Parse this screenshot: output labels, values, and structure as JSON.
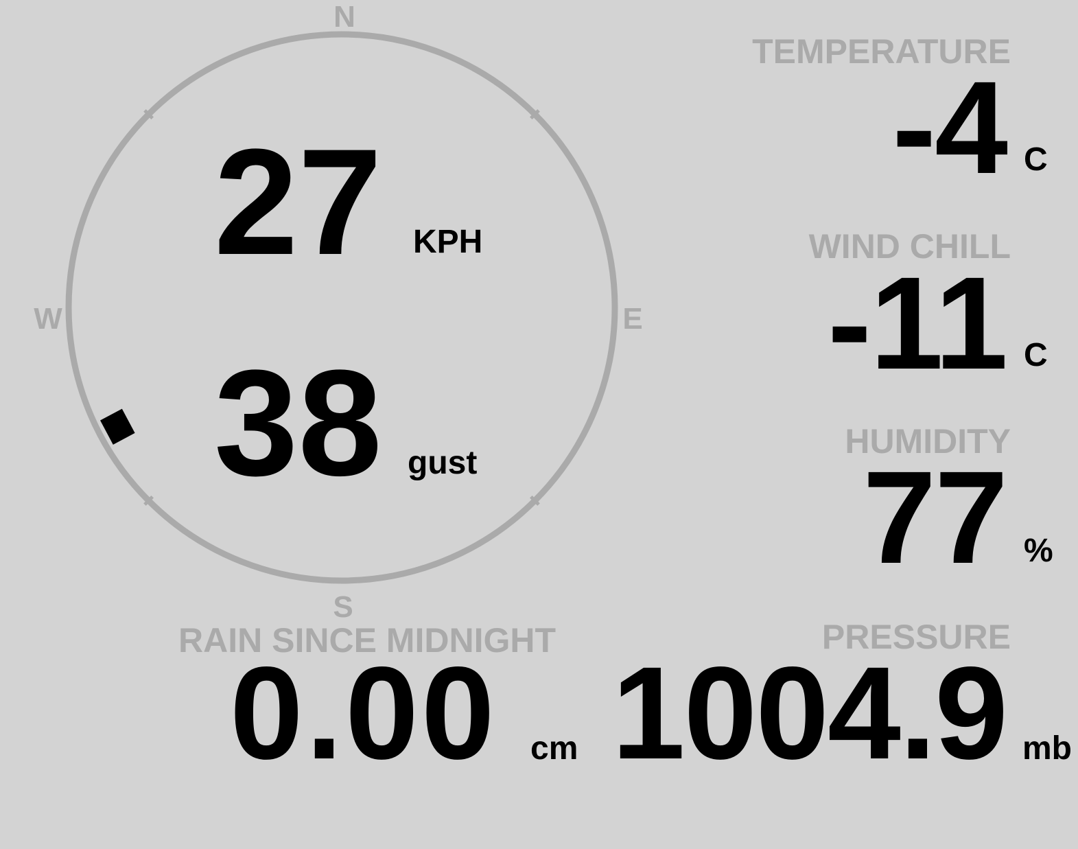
{
  "compass": {
    "north": "N",
    "south": "S",
    "east": "E",
    "west": "W",
    "wind_direction_deg": 242,
    "ring_color": "#aaaaaa",
    "pointer_color": "#000000"
  },
  "wind": {
    "speed": "27",
    "speed_unit": "KPH",
    "gust": "38",
    "gust_unit": "gust"
  },
  "temperature": {
    "label": "TEMPERATURE",
    "value": "-4",
    "unit": "C"
  },
  "wind_chill": {
    "label": "WIND CHILL",
    "value": "-11",
    "unit": "C"
  },
  "humidity": {
    "label": "HUMIDITY",
    "value": "77",
    "unit": "%"
  },
  "pressure": {
    "label": "PRESSURE",
    "value": "1004.9",
    "unit": "mb"
  },
  "rain": {
    "label": "RAIN SINCE MIDNIGHT",
    "value": "0.00",
    "unit": "cm"
  },
  "colors": {
    "background": "#d3d3d3",
    "label": "#aaaaaa",
    "value": "#000000"
  }
}
